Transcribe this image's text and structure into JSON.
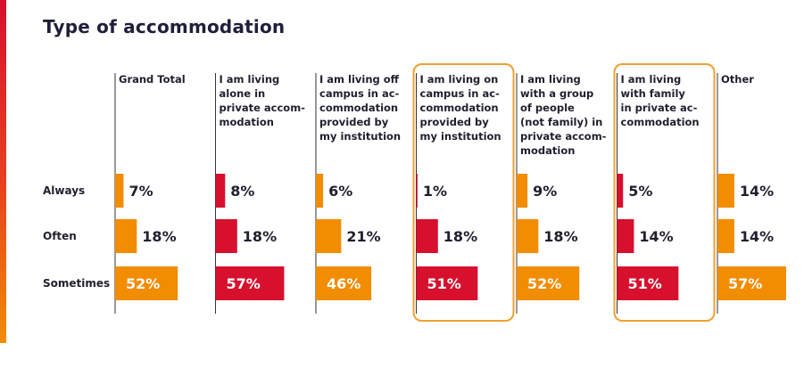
{
  "title": "Type of accommodation",
  "colors": {
    "orange": "#f28c00",
    "red": "#d7102e",
    "highlight": "#f0a030"
  },
  "chart_data": {
    "type": "bar",
    "title": "Type of accommodation",
    "unit": "%",
    "rows": [
      "Always",
      "Often",
      "Sometimes"
    ],
    "columns": [
      {
        "label_lines": [
          "Grand Total"
        ],
        "color": "orange",
        "highlight": false,
        "values": [
          7,
          18,
          52
        ]
      },
      {
        "label_lines": [
          "I am living",
          "alone in",
          "private accom-",
          "modation"
        ],
        "color": "red",
        "highlight": false,
        "values": [
          8,
          18,
          57
        ]
      },
      {
        "label_lines": [
          "I am living off",
          "campus in ac-",
          "commodation",
          "provided by",
          "my institution"
        ],
        "color": "orange",
        "highlight": false,
        "values": [
          6,
          21,
          46
        ]
      },
      {
        "label_lines": [
          "I am living on",
          "campus in ac-",
          "commodation",
          "provided by",
          "my institution"
        ],
        "color": "red",
        "highlight": true,
        "values": [
          1,
          18,
          51
        ]
      },
      {
        "label_lines": [
          "I am living",
          "with a group",
          "of people",
          "(not family) in",
          "private accom-",
          "modation"
        ],
        "color": "orange",
        "highlight": false,
        "values": [
          9,
          18,
          52
        ]
      },
      {
        "label_lines": [
          "I am living",
          "with family",
          "in private ac-",
          "commodation"
        ],
        "color": "red",
        "highlight": true,
        "values": [
          5,
          14,
          51
        ]
      },
      {
        "label_lines": [
          "Other"
        ],
        "color": "orange",
        "highlight": false,
        "values": [
          14,
          14,
          57
        ]
      }
    ]
  }
}
